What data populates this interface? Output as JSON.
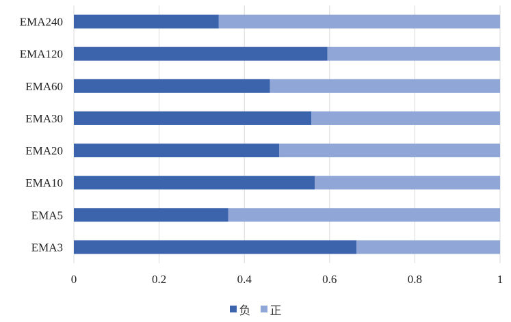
{
  "chart_data": {
    "type": "bar",
    "orientation": "horizontal",
    "stacked": true,
    "categories": [
      "EMA240",
      "EMA120",
      "EMA60",
      "EMA30",
      "EMA20",
      "EMA10",
      "EMA5",
      "EMA3"
    ],
    "series": [
      {
        "name": "负",
        "color": "#3B64AD",
        "values": [
          0.34,
          0.595,
          0.46,
          0.557,
          0.482,
          0.565,
          0.362,
          0.663
        ]
      },
      {
        "name": "正",
        "color": "#8FA6D6",
        "values": [
          0.66,
          0.405,
          0.54,
          0.443,
          0.518,
          0.435,
          0.638,
          0.337
        ]
      }
    ],
    "xlim": [
      0,
      1
    ],
    "xticks": [
      "0",
      "0.2",
      "0.4",
      "0.6",
      "0.8",
      "1"
    ],
    "xtick_values": [
      0,
      0.2,
      0.4,
      0.6,
      0.8,
      1
    ],
    "grid": "vertical",
    "legend": "bottom-center",
    "title": "",
    "xlabel": "",
    "ylabel": ""
  }
}
